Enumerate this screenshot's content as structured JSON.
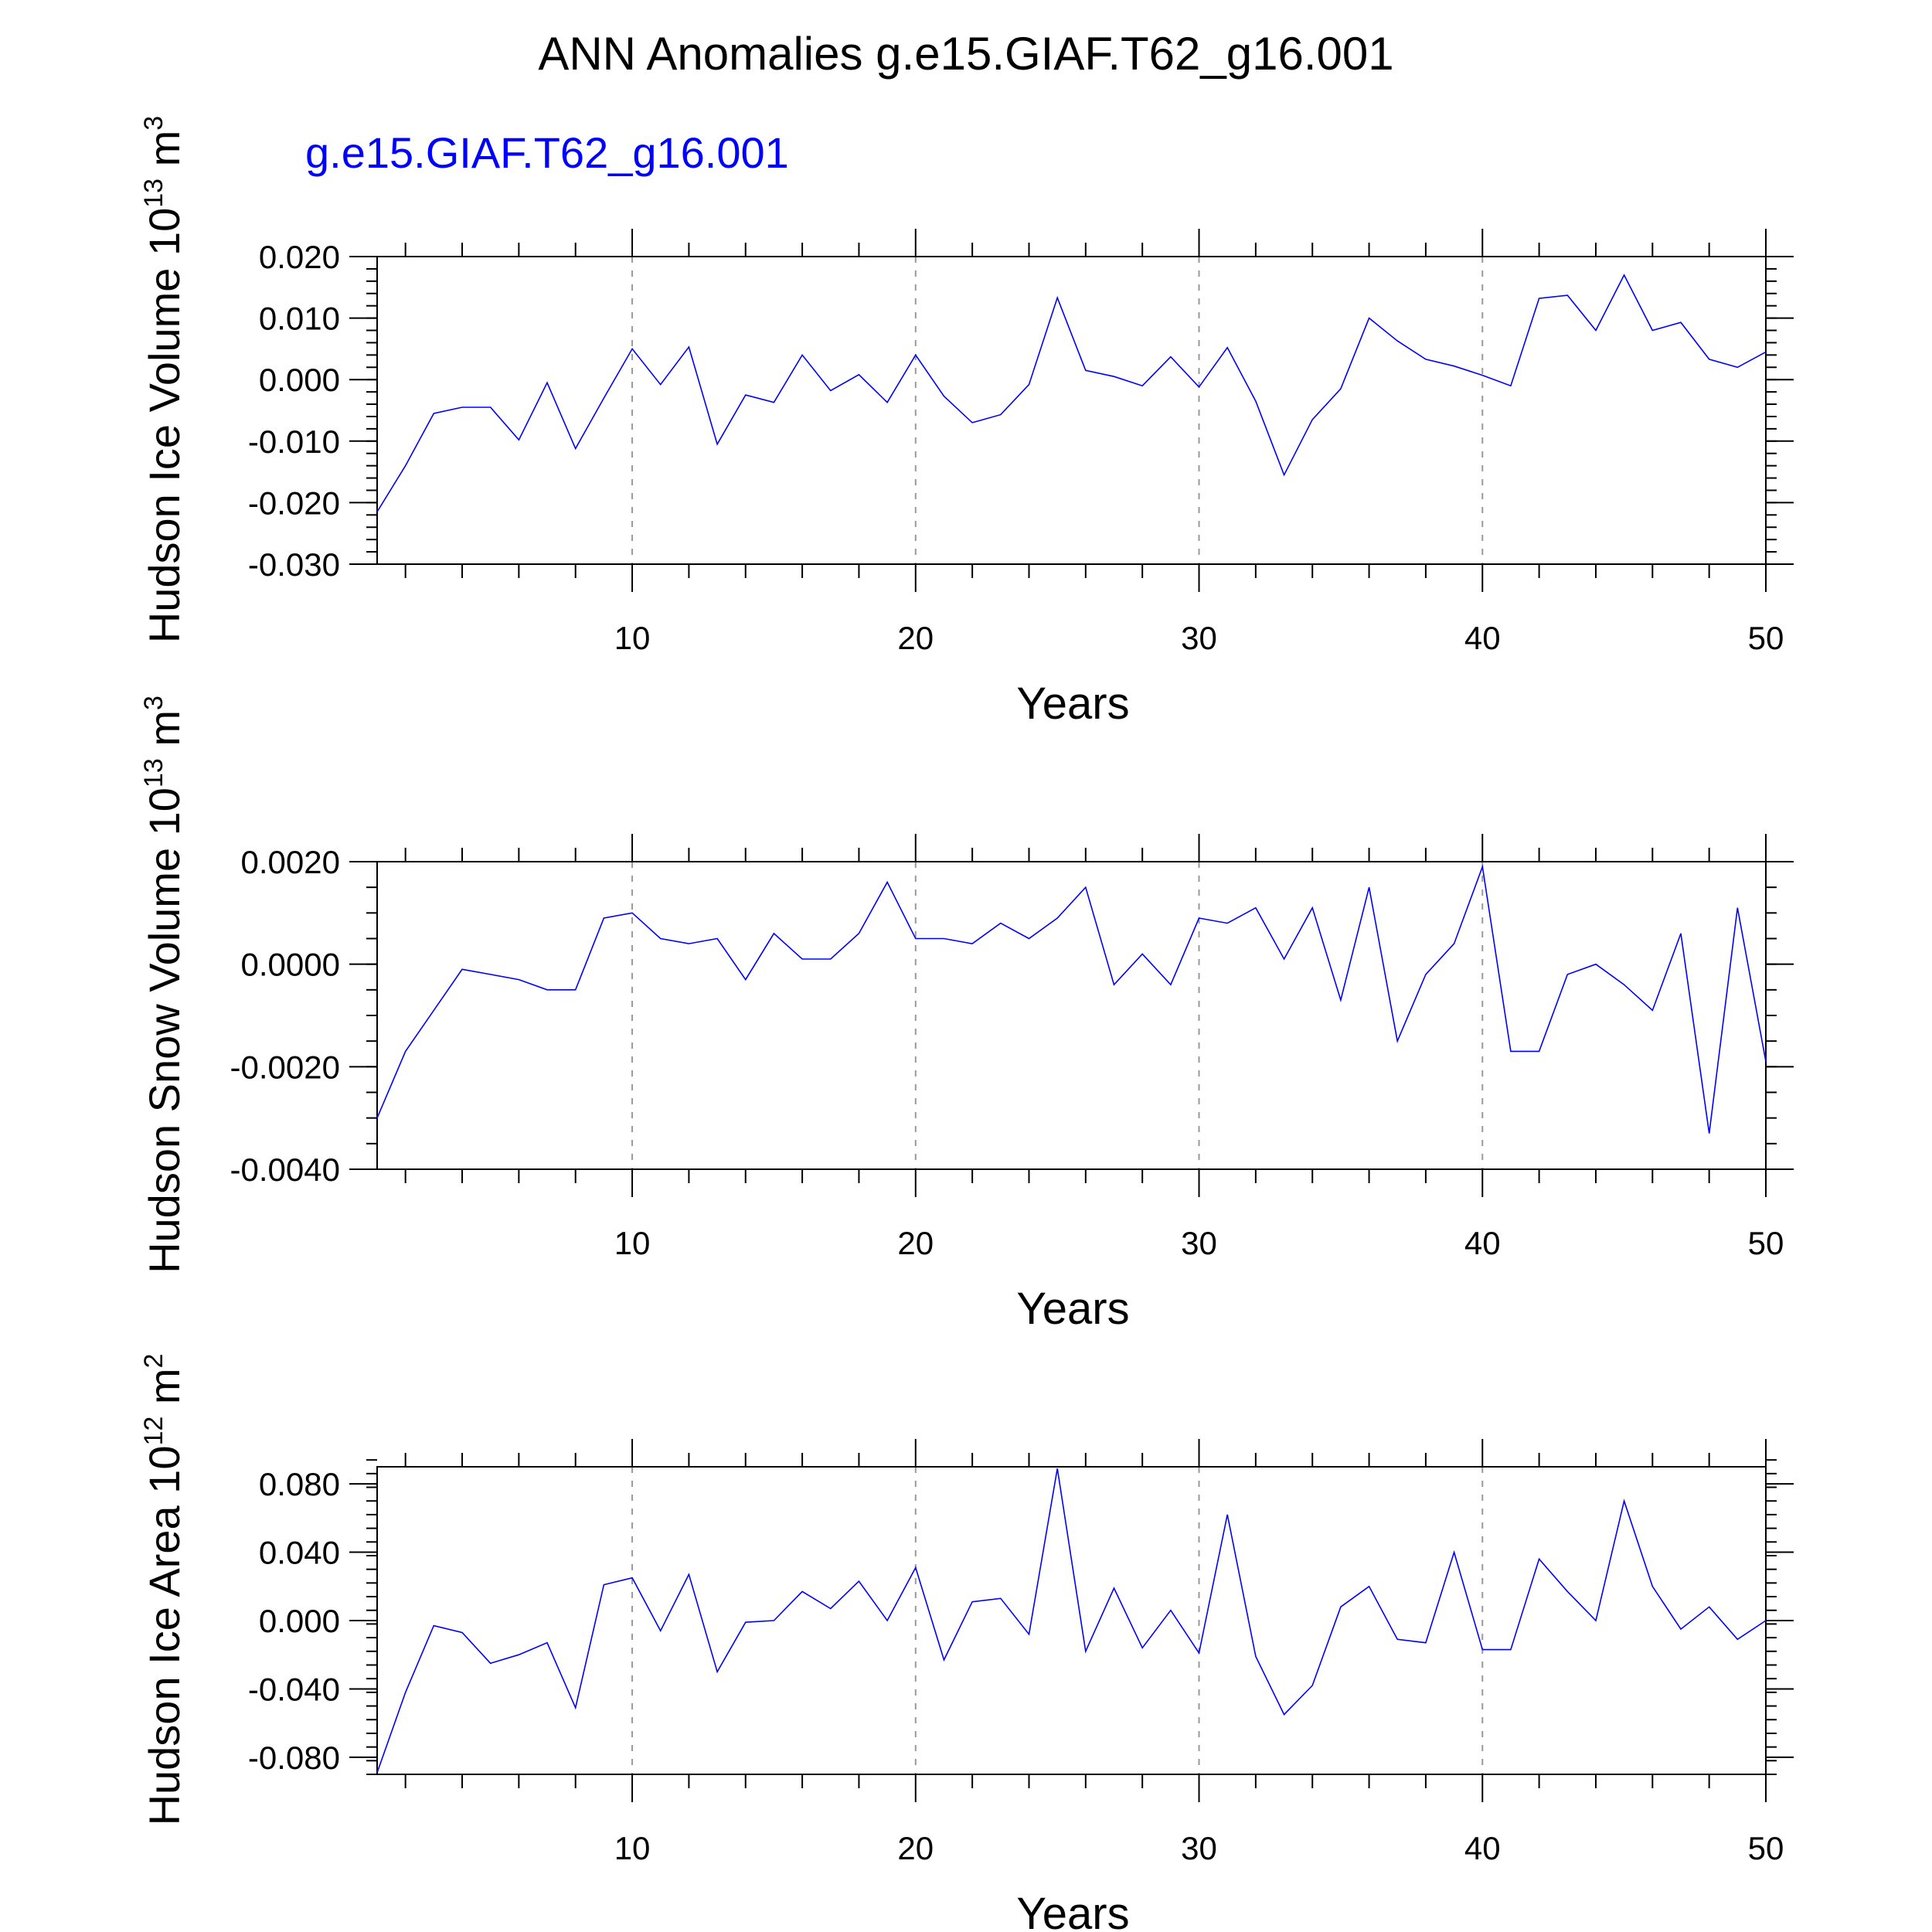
{
  "title": "ANN Anomalies g.e15.GIAF.T62_g16.001",
  "subtitle": "g.e15.GIAF.T62_g16.001",
  "colors": {
    "series": "#0000ff",
    "axes": "#000000",
    "grid": "#999999"
  },
  "chart_data": [
    {
      "type": "line",
      "xlabel": "Years",
      "ylabel_main": "Hudson Ice Volume 10",
      "ylabel_exp": "13",
      "ylabel_unit": " m",
      "ylabel_unit_exp": "3",
      "xlim": [
        1,
        50
      ],
      "ylim": [
        -0.03,
        0.02
      ],
      "xticks": [
        10,
        20,
        30,
        40,
        50
      ],
      "yticks": [
        -0.03,
        -0.02,
        -0.01,
        0.0,
        0.01,
        0.02
      ],
      "ytick_labels": [
        "-0.030",
        "-0.020",
        "-0.010",
        "0.000",
        "0.010",
        "0.020"
      ],
      "yminor": 0.002,
      "grid_x": [
        10,
        20,
        30,
        40
      ],
      "x": [
        1,
        2,
        3,
        4,
        5,
        6,
        7,
        8,
        9,
        10,
        11,
        12,
        13,
        14,
        15,
        16,
        17,
        18,
        19,
        20,
        21,
        22,
        23,
        24,
        25,
        26,
        27,
        28,
        29,
        30,
        31,
        32,
        33,
        34,
        35,
        36,
        37,
        38,
        39,
        40,
        41,
        42,
        43,
        44,
        45,
        46,
        47,
        48,
        49,
        50
      ],
      "values": [
        -0.0215,
        -0.014,
        -0.0055,
        -0.0045,
        -0.0045,
        -0.0098,
        -0.0005,
        -0.0112,
        -0.003,
        0.005,
        -0.0008,
        0.0053,
        -0.0105,
        -0.0025,
        -0.0037,
        0.004,
        -0.0018,
        0.0008,
        -0.0037,
        0.004,
        -0.0027,
        -0.007,
        -0.0057,
        -0.0008,
        0.0133,
        0.0015,
        0.0005,
        -0.001,
        0.0037,
        -0.0012,
        0.0052,
        -0.0035,
        -0.0155,
        -0.0065,
        -0.0015,
        0.01,
        0.0063,
        0.0033,
        0.0022,
        0.0007,
        -0.001,
        0.0132,
        0.0137,
        0.008,
        0.017,
        0.008,
        0.0093,
        0.0033,
        0.002,
        0.0045
      ]
    },
    {
      "type": "line",
      "xlabel": "Years",
      "ylabel_main": "Hudson Snow Volume 10",
      "ylabel_exp": "13",
      "ylabel_unit": " m",
      "ylabel_unit_exp": "3",
      "xlim": [
        1,
        50
      ],
      "ylim": [
        -0.004,
        0.002
      ],
      "xticks": [
        10,
        20,
        30,
        40,
        50
      ],
      "yticks": [
        -0.004,
        -0.002,
        0.0,
        0.002
      ],
      "ytick_labels": [
        "-0.0040",
        "-0.0020",
        "0.0000",
        "0.0020"
      ],
      "yminor": 0.0005,
      "grid_x": [
        10,
        20,
        30,
        40
      ],
      "x": [
        1,
        2,
        3,
        4,
        5,
        6,
        7,
        8,
        9,
        10,
        11,
        12,
        13,
        14,
        15,
        16,
        17,
        18,
        19,
        20,
        21,
        22,
        23,
        24,
        25,
        26,
        27,
        28,
        29,
        30,
        31,
        32,
        33,
        34,
        35,
        36,
        37,
        38,
        39,
        40,
        41,
        42,
        43,
        44,
        45,
        46,
        47,
        48,
        49,
        50
      ],
      "values": [
        -0.003,
        -0.0017,
        -0.0009,
        -0.0001,
        -0.0002,
        -0.0003,
        -0.0005,
        -0.0005,
        0.0009,
        0.001,
        0.0005,
        0.0004,
        0.0005,
        -0.0003,
        0.0006,
        0.0001,
        0.0001,
        0.0006,
        0.0016,
        0.0005,
        0.0005,
        0.0004,
        0.0008,
        0.0005,
        0.0009,
        0.0015,
        -0.0004,
        0.0002,
        -0.0004,
        0.0009,
        0.0008,
        0.0011,
        0.0001,
        0.0011,
        -0.0007,
        0.0015,
        -0.0015,
        -0.0002,
        0.0004,
        0.0019,
        -0.0017,
        -0.0017,
        -0.0002,
        0.0,
        -0.0004,
        -0.0009,
        0.0006,
        -0.0033,
        0.0011,
        -0.0019
      ]
    },
    {
      "type": "line",
      "xlabel": "Years",
      "ylabel_main": "Hudson Ice Area 10",
      "ylabel_exp": "12",
      "ylabel_unit": " m",
      "ylabel_unit_exp": "2",
      "xlim": [
        1,
        50
      ],
      "ylim": [
        -0.09,
        0.09
      ],
      "xticks": [
        10,
        20,
        30,
        40,
        50
      ],
      "yticks": [
        -0.08,
        -0.04,
        0.0,
        0.04,
        0.08
      ],
      "ytick_labels": [
        "-0.080",
        "-0.040",
        "0.000",
        "0.040",
        "0.080"
      ],
      "yminor": 0.008,
      "grid_x": [
        10,
        20,
        30,
        40
      ],
      "x": [
        1,
        2,
        3,
        4,
        5,
        6,
        7,
        8,
        9,
        10,
        11,
        12,
        13,
        14,
        15,
        16,
        17,
        18,
        19,
        20,
        21,
        22,
        23,
        24,
        25,
        26,
        27,
        28,
        29,
        30,
        31,
        32,
        33,
        34,
        35,
        36,
        37,
        38,
        39,
        40,
        41,
        42,
        43,
        44,
        45,
        46,
        47,
        48,
        49,
        50
      ],
      "values": [
        -0.089,
        -0.042,
        -0.003,
        -0.007,
        -0.025,
        -0.02,
        -0.013,
        -0.051,
        0.021,
        0.025,
        -0.006,
        0.027,
        -0.03,
        -0.001,
        0.0,
        0.017,
        0.007,
        0.023,
        0.0,
        0.031,
        -0.023,
        0.011,
        0.013,
        -0.008,
        0.089,
        -0.018,
        0.019,
        -0.016,
        0.006,
        -0.019,
        0.062,
        -0.021,
        -0.055,
        -0.038,
        0.008,
        0.02,
        -0.011,
        -0.013,
        0.04,
        -0.017,
        -0.017,
        0.036,
        0.017,
        0.0,
        0.07,
        0.02,
        -0.005,
        0.008,
        -0.011,
        0.0
      ]
    }
  ]
}
